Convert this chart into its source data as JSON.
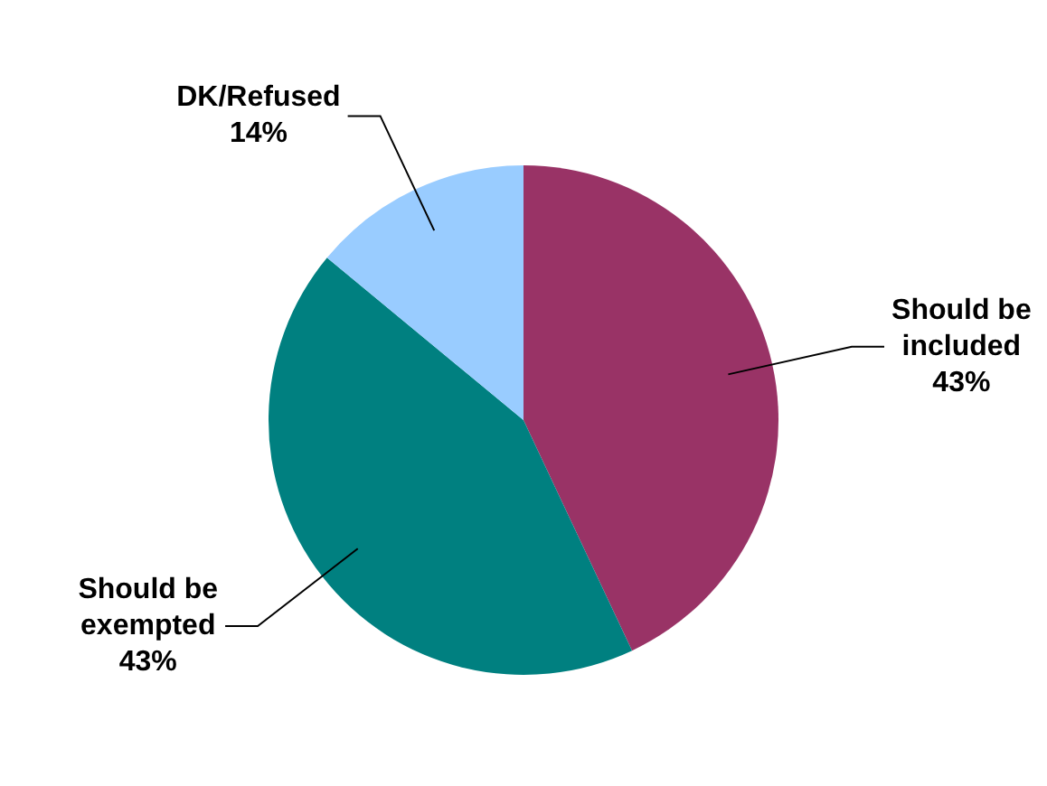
{
  "chart_data": {
    "type": "pie",
    "categories": [
      "Should be included",
      "Should be exempted",
      "DK/Refused"
    ],
    "values": [
      43,
      43,
      14
    ],
    "value_labels": [
      "43%",
      "43%",
      "14%"
    ],
    "colors": [
      "#993366",
      "#008080",
      "#99ccff"
    ],
    "legend": false
  }
}
